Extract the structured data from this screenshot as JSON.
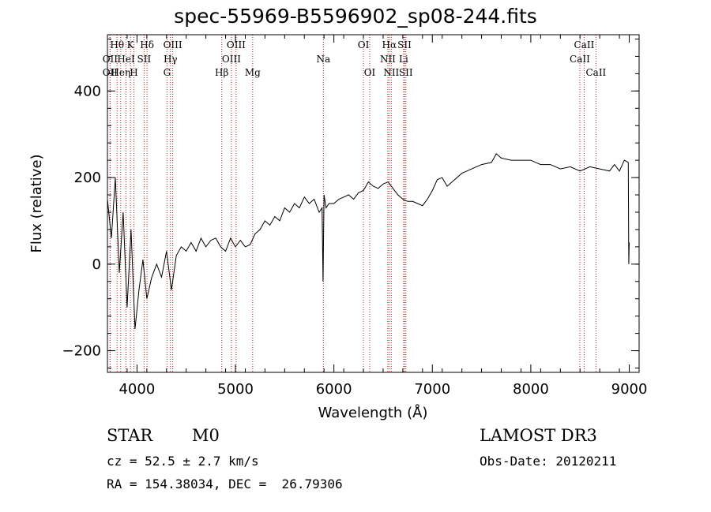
{
  "title": "spec-55969-B5596902_sp08-244.fits",
  "info": {
    "class": "STAR",
    "subclass": "M0",
    "survey": "LAMOST DR3",
    "cz": "cz = 52.5 ± 2.7 km/s",
    "obs_date": "Obs-Date: 20120211",
    "radec": "RA = 154.38034, DEC =  26.79306"
  },
  "chart_data": {
    "type": "line",
    "title": "spec-55969-B5596902_sp08-244.fits",
    "xlabel": "Wavelength (Å)",
    "ylabel": "Flux (relative)",
    "xlim": [
      3700,
      9100
    ],
    "ylim": [
      -250,
      530
    ],
    "xticks": [
      4000,
      5000,
      6000,
      7000,
      8000,
      9000
    ],
    "yticks": [
      -200,
      0,
      200,
      400
    ],
    "line_color": "#000000",
    "marker_color": "#b22222",
    "series": [
      {
        "name": "flux",
        "x": [
          3700,
          3740,
          3780,
          3820,
          3860,
          3900,
          3940,
          3980,
          4020,
          4060,
          4100,
          4150,
          4200,
          4250,
          4300,
          4350,
          4400,
          4450,
          4500,
          4550,
          4600,
          4650,
          4700,
          4750,
          4800,
          4850,
          4900,
          4950,
          5000,
          5050,
          5100,
          5150,
          5200,
          5250,
          5300,
          5350,
          5400,
          5450,
          5500,
          5550,
          5600,
          5650,
          5700,
          5750,
          5800,
          5850,
          5880,
          5890,
          5900,
          5920,
          5950,
          6000,
          6050,
          6100,
          6150,
          6200,
          6250,
          6300,
          6350,
          6400,
          6450,
          6500,
          6550,
          6600,
          6650,
          6700,
          6750,
          6800,
          6850,
          6900,
          6950,
          7000,
          7050,
          7100,
          7150,
          7200,
          7300,
          7400,
          7500,
          7600,
          7650,
          7700,
          7800,
          7900,
          8000,
          8050,
          8100,
          8200,
          8300,
          8400,
          8500,
          8600,
          8700,
          8800,
          8850,
          8900,
          8950,
          8990,
          8995,
          9000
        ],
        "y": [
          150,
          60,
          200,
          -20,
          120,
          -100,
          80,
          -150,
          -60,
          10,
          -80,
          -30,
          0,
          -30,
          30,
          -60,
          20,
          40,
          30,
          50,
          30,
          60,
          40,
          55,
          60,
          40,
          30,
          60,
          40,
          55,
          40,
          45,
          70,
          80,
          100,
          90,
          110,
          100,
          130,
          120,
          140,
          130,
          155,
          140,
          150,
          120,
          130,
          -40,
          160,
          130,
          140,
          140,
          150,
          155,
          160,
          150,
          165,
          170,
          190,
          180,
          175,
          185,
          190,
          175,
          160,
          150,
          145,
          145,
          140,
          135,
          150,
          170,
          195,
          200,
          180,
          190,
          210,
          220,
          230,
          235,
          255,
          245,
          240,
          240,
          240,
          235,
          230,
          230,
          220,
          225,
          215,
          225,
          220,
          215,
          230,
          215,
          240,
          235,
          0,
          50
        ]
      }
    ],
    "lines": [
      {
        "label": "Hθ",
        "wl": 3798,
        "row": 0
      },
      {
        "label": "OII",
        "wl": 3727,
        "row": 1
      },
      {
        "label": "OII",
        "wl": 3727,
        "row": 2
      },
      {
        "label": "Heη",
        "wl": 3835,
        "row": 2
      },
      {
        "label": "HeI",
        "wl": 3889,
        "row": 1
      },
      {
        "label": "K",
        "wl": 3934,
        "row": 0
      },
      {
        "label": "H",
        "wl": 3969,
        "row": 2
      },
      {
        "label": "SII",
        "wl": 4072,
        "row": 1
      },
      {
        "label": "Hδ",
        "wl": 4102,
        "row": 0
      },
      {
        "label": "OIII",
        "wl": 4363,
        "row": 0
      },
      {
        "label": "Hγ",
        "wl": 4340,
        "row": 1
      },
      {
        "label": "G",
        "wl": 4305,
        "row": 2
      },
      {
        "label": "Hβ",
        "wl": 4861,
        "row": 2
      },
      {
        "label": "OIII",
        "wl": 5007,
        "row": 0
      },
      {
        "label": "OIII",
        "wl": 4959,
        "row": 1
      },
      {
        "label": "Mg",
        "wl": 5175,
        "row": 2
      },
      {
        "label": "Na",
        "wl": 5893,
        "row": 1
      },
      {
        "label": "OI",
        "wl": 6300,
        "row": 0
      },
      {
        "label": "OI",
        "wl": 6364,
        "row": 2
      },
      {
        "label": "Hα",
        "wl": 6563,
        "row": 0
      },
      {
        "label": "NII",
        "wl": 6548,
        "row": 1
      },
      {
        "label": "NII",
        "wl": 6583,
        "row": 2
      },
      {
        "label": "SII",
        "wl": 6717,
        "row": 0
      },
      {
        "label": "Li",
        "wl": 6708,
        "row": 1
      },
      {
        "label": "SII",
        "wl": 6731,
        "row": 2
      },
      {
        "label": "CaII",
        "wl": 8542,
        "row": 0
      },
      {
        "label": "CaII",
        "wl": 8498,
        "row": 1
      },
      {
        "label": "CaII",
        "wl": 8662,
        "row": 2
      }
    ]
  }
}
